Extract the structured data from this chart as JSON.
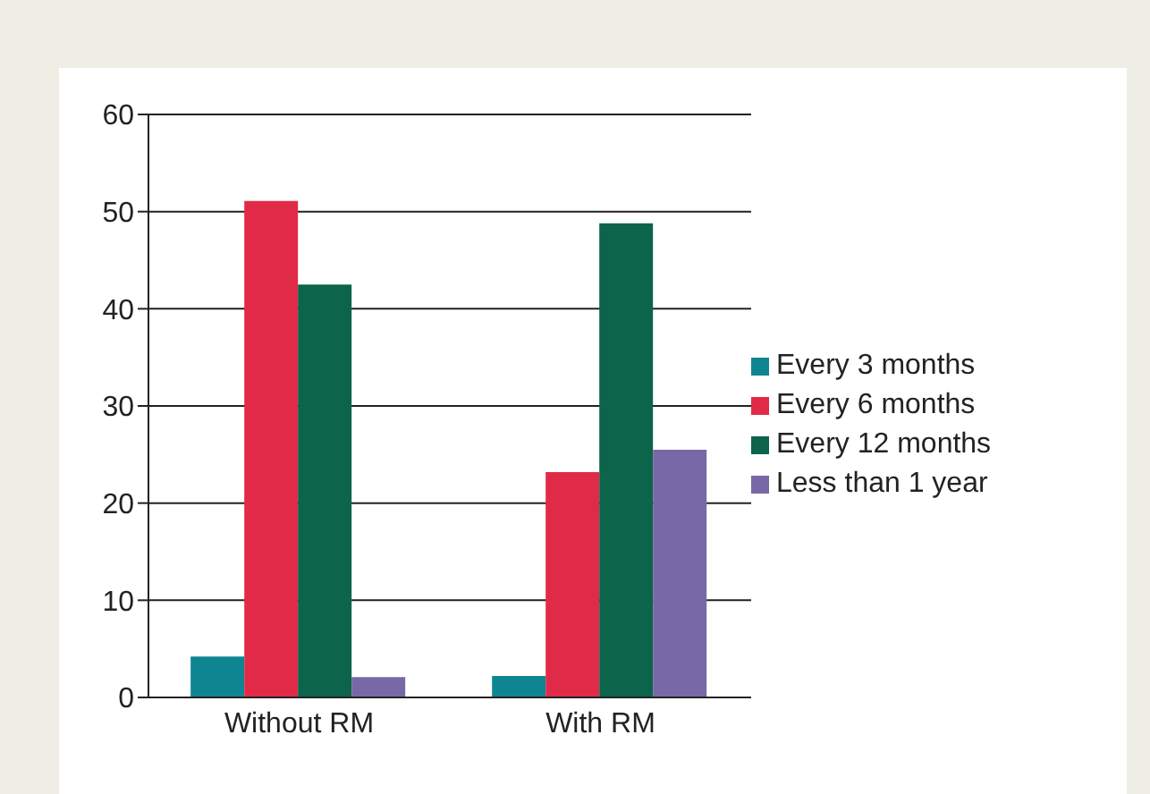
{
  "chart_data": {
    "type": "bar",
    "categories": [
      "Without RM",
      "With RM"
    ],
    "series": [
      {
        "name": "Every 3 months",
        "color": "#0f8592",
        "values": [
          4.2,
          2.2
        ]
      },
      {
        "name": "Every 6 months",
        "color": "#e12a47",
        "values": [
          51.1,
          23.2
        ]
      },
      {
        "name": "Every 12 months",
        "color": "#0c644a",
        "values": [
          42.5,
          48.8
        ]
      },
      {
        "name": "Less than 1 year",
        "color": "#7868a8",
        "values": [
          2.1,
          25.5
        ]
      }
    ],
    "ylim": [
      0,
      60
    ],
    "yticks": [
      0,
      10,
      20,
      30,
      40,
      50,
      60
    ],
    "grid": "y",
    "legend": "right"
  }
}
